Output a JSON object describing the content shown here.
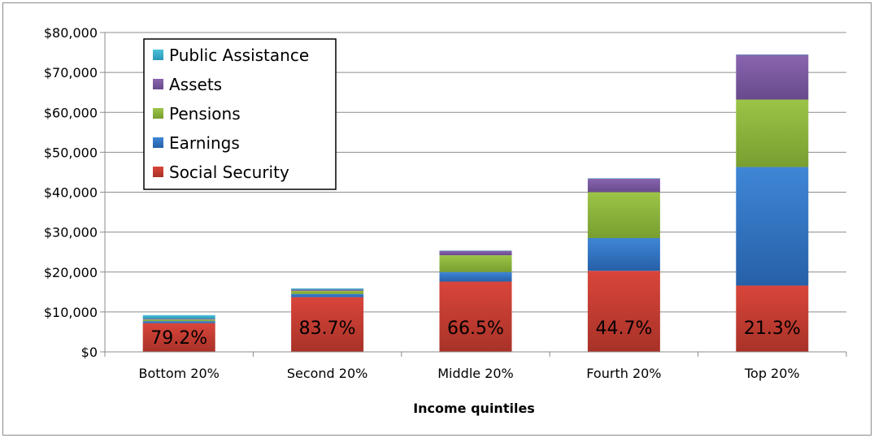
{
  "chart_data": {
    "type": "bar",
    "stacked": true,
    "title": "",
    "xlabel": "Income quintiles",
    "ylabel": "",
    "ylim": [
      0,
      80000
    ],
    "yticks": [
      "$0",
      "$10,000",
      "$20,000",
      "$30,000",
      "$40,000",
      "$50,000",
      "$60,000",
      "$70,000",
      "$80,000"
    ],
    "ytick_values": [
      0,
      10000,
      20000,
      30000,
      40000,
      50000,
      60000,
      70000,
      80000
    ],
    "categories": [
      "Bottom 20%",
      "Second 20%",
      "Middle 20%",
      "Fourth 20%",
      "Top 20%"
    ],
    "series": [
      {
        "name": "Social Security",
        "color": "#c0392b",
        "values": [
          7200,
          13700,
          17600,
          20300,
          16600
        ]
      },
      {
        "name": "Earnings",
        "color": "#2e75c6",
        "values": [
          500,
          800,
          2400,
          8200,
          29700
        ]
      },
      {
        "name": "Pensions",
        "color": "#8db63c",
        "values": [
          400,
          800,
          4200,
          11500,
          16900
        ]
      },
      {
        "name": "Assets",
        "color": "#7e5aa3",
        "values": [
          200,
          300,
          1100,
          3400,
          11200
        ]
      },
      {
        "name": "Public Assistance",
        "color": "#3ab3d0",
        "values": [
          900,
          300,
          100,
          100,
          100
        ]
      }
    ],
    "data_labels": [
      "79.2%",
      "83.7%",
      "66.5%",
      "44.7%",
      "21.3%"
    ],
    "legend": {
      "position": "top-left",
      "entries": [
        "Public Assistance",
        "Assets",
        "Pensions",
        "Earnings",
        "Social Security"
      ]
    },
    "grid": true
  }
}
